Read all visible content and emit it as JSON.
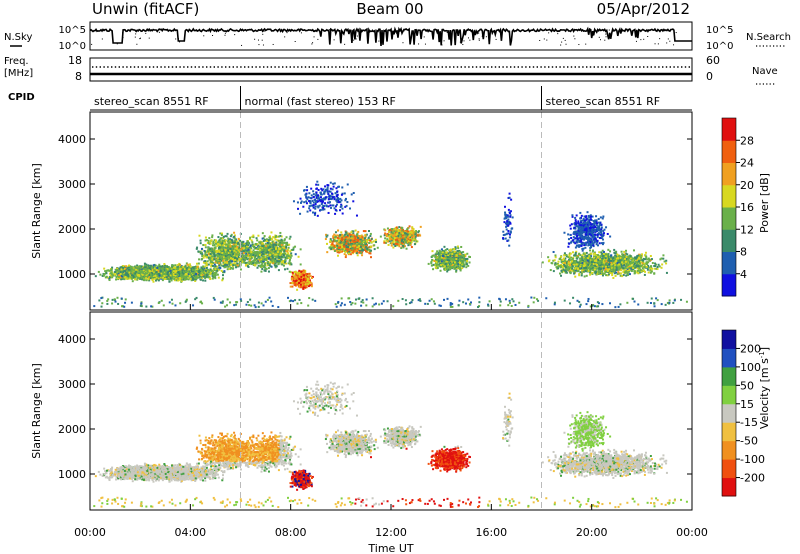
{
  "header": {
    "station": "Unwin (fitACF)",
    "beam": "Beam 00",
    "date": "05/Apr/2012"
  },
  "top_panels": {
    "nsky_label": "N.Sky",
    "nsky_tick_top": "10^5",
    "nsky_tick_bottom": "10^0",
    "nsearch_label": "N.Search",
    "nsearch_tick_top": "10^5",
    "nsearch_tick_bottom": "10^0",
    "freq_label_1": "Freq.",
    "freq_label_2": "[MHz]",
    "freq_tick_top": "18",
    "freq_tick_bottom": "8",
    "nave_label": "Nave",
    "nave_tick_top": "60",
    "nave_tick_bottom": "0",
    "cpid_label": "CPID",
    "cpid_segments": [
      {
        "label": "stereo_scan 8551 RF",
        "start_hour": 0,
        "end_hour": 6
      },
      {
        "label": "normal (fast stereo) 153 RF",
        "start_hour": 6,
        "end_hour": 18
      },
      {
        "label": "stereo_scan 8551 RF",
        "start_hour": 18,
        "end_hour": 24
      }
    ]
  },
  "chart_data": [
    {
      "type": "heatmap",
      "panel": "power",
      "ylabel": "Slant Range [km]",
      "yticks": [
        "1000",
        "2000",
        "3000",
        "4000"
      ],
      "ylim": [
        200,
        4600
      ],
      "colorbar_label": "Power [dB]",
      "colorbar_ticks": [
        "4",
        "8",
        "12",
        "16",
        "20",
        "24",
        "28"
      ],
      "colorbar_colors": [
        "#1010e0",
        "#1f5fb0",
        "#3a8a6a",
        "#6ab04a",
        "#d8d820",
        "#f0a020",
        "#f06010",
        "#e01010"
      ],
      "colorbar_range": [
        0,
        32
      ],
      "xticks": [
        "00:00",
        "04:00",
        "08:00",
        "12:00",
        "16:00",
        "20:00",
        "00:00"
      ],
      "xlim_hours": [
        0,
        24
      ]
    },
    {
      "type": "heatmap",
      "panel": "velocity",
      "ylabel": "Slant Range [km]",
      "yticks": [
        "1000",
        "2000",
        "3000",
        "4000"
      ],
      "ylim": [
        200,
        4600
      ],
      "colorbar_label": "Velocity [m s^-1]",
      "colorbar_label_main": "Velocity [m s",
      "colorbar_label_sup": "-1",
      "colorbar_label_end": "]",
      "colorbar_ticks": [
        "-200",
        "-100",
        "-50",
        "-15",
        "15",
        "50",
        "100",
        "200"
      ],
      "colorbar_colors": [
        "#e01010",
        "#f05010",
        "#f09020",
        "#f0c040",
        "#c8c8c0",
        "#80d040",
        "#40a040",
        "#2050c0",
        "#1010a0"
      ],
      "xlabel": "Time UT",
      "xticks": [
        "00:00",
        "04:00",
        "08:00",
        "12:00",
        "16:00",
        "20:00",
        "00:00"
      ],
      "xlim_hours": [
        0,
        24
      ]
    }
  ]
}
